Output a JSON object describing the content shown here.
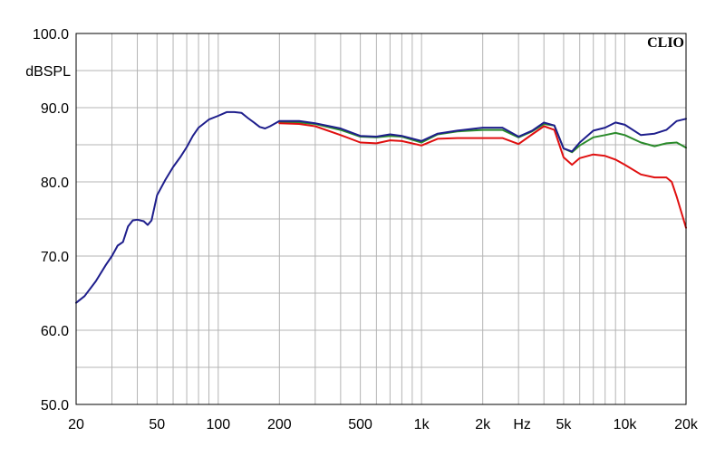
{
  "brand_text": "CLIO",
  "chart_data": {
    "type": "line",
    "title": "",
    "xlabel": "Hz",
    "ylabel": "dBSPL",
    "x_scale": "log",
    "xlim": [
      20,
      20000
    ],
    "ylim": [
      50,
      100
    ],
    "grid": true,
    "x_tick_labels": [
      {
        "value": 20,
        "label": "20"
      },
      {
        "value": 50,
        "label": "50"
      },
      {
        "value": 100,
        "label": "100"
      },
      {
        "value": 200,
        "label": "200"
      },
      {
        "value": 500,
        "label": "500"
      },
      {
        "value": 1000,
        "label": "1k"
      },
      {
        "value": 2000,
        "label": "2k"
      },
      {
        "value": 5000,
        "label": "5k"
      },
      {
        "value": 10000,
        "label": "10k"
      },
      {
        "value": 20000,
        "label": "20k"
      }
    ],
    "y_tick_labels": [
      {
        "value": 100,
        "label": "100.0"
      },
      {
        "value": 90,
        "label": "90.0"
      },
      {
        "value": 80,
        "label": "80.0"
      },
      {
        "value": 70,
        "label": "70.0"
      },
      {
        "value": 60,
        "label": "60.0"
      },
      {
        "value": 50,
        "label": "50.0"
      }
    ],
    "series": [
      {
        "color": "#2a8a2a",
        "points": [
          [
            200,
            88.1
          ],
          [
            250,
            88.0
          ],
          [
            300,
            87.8
          ],
          [
            400,
            87.0
          ],
          [
            500,
            86.1
          ],
          [
            600,
            86.0
          ],
          [
            700,
            86.2
          ],
          [
            800,
            86.1
          ],
          [
            1000,
            85.3
          ],
          [
            1200,
            86.4
          ],
          [
            1500,
            86.8
          ],
          [
            2000,
            87.0
          ],
          [
            2500,
            87.0
          ],
          [
            3000,
            86.0
          ],
          [
            3500,
            86.8
          ],
          [
            4000,
            87.8
          ],
          [
            4500,
            87.6
          ],
          [
            5000,
            84.5
          ],
          [
            5500,
            84.0
          ],
          [
            6000,
            84.9
          ],
          [
            7000,
            86.0
          ],
          [
            8000,
            86.3
          ],
          [
            9000,
            86.6
          ],
          [
            10000,
            86.3
          ],
          [
            12000,
            85.3
          ],
          [
            14000,
            84.8
          ],
          [
            16000,
            85.2
          ],
          [
            18000,
            85.3
          ],
          [
            20000,
            84.6
          ]
        ]
      },
      {
        "color": "#e01010",
        "points": [
          [
            200,
            87.9
          ],
          [
            250,
            87.8
          ],
          [
            300,
            87.5
          ],
          [
            400,
            86.3
          ],
          [
            500,
            85.3
          ],
          [
            600,
            85.2
          ],
          [
            700,
            85.6
          ],
          [
            800,
            85.5
          ],
          [
            1000,
            84.9
          ],
          [
            1200,
            85.8
          ],
          [
            1500,
            85.9
          ],
          [
            2000,
            85.9
          ],
          [
            2500,
            85.9
          ],
          [
            3000,
            85.1
          ],
          [
            3500,
            86.4
          ],
          [
            4000,
            87.5
          ],
          [
            4500,
            87.0
          ],
          [
            5000,
            83.3
          ],
          [
            5500,
            82.3
          ],
          [
            6000,
            83.2
          ],
          [
            7000,
            83.7
          ],
          [
            8000,
            83.5
          ],
          [
            9000,
            83.0
          ],
          [
            10000,
            82.3
          ],
          [
            12000,
            81.0
          ],
          [
            14000,
            80.6
          ],
          [
            16000,
            80.6
          ],
          [
            17000,
            80.0
          ],
          [
            18000,
            78.0
          ],
          [
            20000,
            73.8
          ]
        ]
      },
      {
        "color": "#1e1e8c",
        "points": [
          [
            20,
            63.7
          ],
          [
            22,
            64.6
          ],
          [
            25,
            66.6
          ],
          [
            28,
            68.8
          ],
          [
            30,
            70.0
          ],
          [
            32,
            71.4
          ],
          [
            34,
            71.9
          ],
          [
            36,
            74.0
          ],
          [
            38,
            74.8
          ],
          [
            40,
            74.9
          ],
          [
            43,
            74.7
          ],
          [
            45,
            74.2
          ],
          [
            47,
            74.8
          ],
          [
            50,
            78.2
          ],
          [
            55,
            80.3
          ],
          [
            60,
            82.0
          ],
          [
            65,
            83.3
          ],
          [
            70,
            84.7
          ],
          [
            75,
            86.2
          ],
          [
            80,
            87.3
          ],
          [
            90,
            88.4
          ],
          [
            100,
            88.9
          ],
          [
            110,
            89.4
          ],
          [
            120,
            89.4
          ],
          [
            130,
            89.3
          ],
          [
            140,
            88.6
          ],
          [
            150,
            88.0
          ],
          [
            160,
            87.4
          ],
          [
            170,
            87.2
          ],
          [
            180,
            87.5
          ],
          [
            200,
            88.2
          ],
          [
            250,
            88.2
          ],
          [
            300,
            87.9
          ],
          [
            400,
            87.2
          ],
          [
            500,
            86.2
          ],
          [
            600,
            86.1
          ],
          [
            700,
            86.4
          ],
          [
            800,
            86.2
          ],
          [
            1000,
            85.5
          ],
          [
            1200,
            86.5
          ],
          [
            1500,
            86.9
          ],
          [
            2000,
            87.3
          ],
          [
            2500,
            87.3
          ],
          [
            3000,
            86.1
          ],
          [
            3500,
            86.9
          ],
          [
            4000,
            88.0
          ],
          [
            4500,
            87.6
          ],
          [
            5000,
            84.5
          ],
          [
            5500,
            84.1
          ],
          [
            6000,
            85.3
          ],
          [
            7000,
            86.9
          ],
          [
            8000,
            87.3
          ],
          [
            9000,
            88.0
          ],
          [
            10000,
            87.7
          ],
          [
            12000,
            86.3
          ],
          [
            14000,
            86.5
          ],
          [
            16000,
            87.0
          ],
          [
            18000,
            88.2
          ],
          [
            20000,
            88.5
          ]
        ]
      }
    ]
  }
}
